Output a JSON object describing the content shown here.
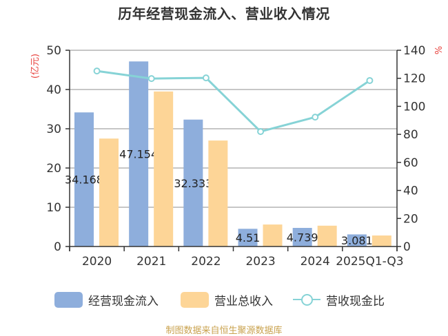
{
  "title": "历年经营现金流入、营业收入情况",
  "footer": {
    "text": "制图数据来自恒生聚源数据库",
    "color": "#c9a24e"
  },
  "legend": [
    {
      "label": "经营现金流入",
      "type": "bar",
      "color": "#8eaedc"
    },
    {
      "label": "营业总收入",
      "type": "bar",
      "color": "#fdd597"
    },
    {
      "label": "营收现金比",
      "type": "line",
      "color": "#86d3d6"
    }
  ],
  "chart_data": {
    "type": "bar",
    "title": "历年经营现金流入、营业收入情况",
    "categories": [
      "2020",
      "2021",
      "2022",
      "2023",
      "2024",
      "2025Q1-Q3"
    ],
    "series": [
      {
        "name": "经营现金流入",
        "type": "bar",
        "axis": "left",
        "color": "#8eaedc",
        "values": [
          34.168,
          47.154,
          32.333,
          4.51,
          4.739,
          3.081
        ],
        "labels": [
          "34.168",
          "47.154",
          "32.333",
          "4.51",
          "4.739",
          "3.081"
        ]
      },
      {
        "name": "营业总收入",
        "type": "bar",
        "axis": "left",
        "color": "#fdd597",
        "values": [
          27.5,
          39.5,
          27.0,
          5.6,
          5.3,
          2.8
        ]
      },
      {
        "name": "营收现金比",
        "type": "line",
        "axis": "right",
        "color": "#86d3d6",
        "values": [
          125.2,
          119.8,
          120.3,
          82.0,
          92.3,
          118.4
        ]
      }
    ],
    "ylabel": "(亿元)",
    "ylabel_color": "#e8413c",
    "ylim": [
      0,
      50
    ],
    "yticks": [
      0,
      10,
      20,
      30,
      40,
      50
    ],
    "y2label": "%",
    "y2label_color": "#e8413c",
    "y2lim": [
      0,
      140
    ],
    "y2ticks": [
      0,
      20,
      40,
      60,
      80,
      100,
      120,
      140
    ],
    "grid": true,
    "legend_position": "bottom"
  }
}
